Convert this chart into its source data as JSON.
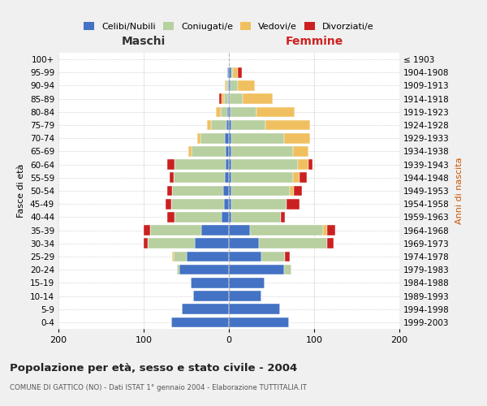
{
  "age_groups": [
    "0-4",
    "5-9",
    "10-14",
    "15-19",
    "20-24",
    "25-29",
    "30-34",
    "35-39",
    "40-44",
    "45-49",
    "50-54",
    "55-59",
    "60-64",
    "65-69",
    "70-74",
    "75-79",
    "80-84",
    "85-89",
    "90-94",
    "95-99",
    "100+"
  ],
  "birth_years": [
    "1999-2003",
    "1994-1998",
    "1989-1993",
    "1984-1988",
    "1979-1983",
    "1974-1978",
    "1969-1973",
    "1964-1968",
    "1959-1963",
    "1954-1958",
    "1949-1953",
    "1944-1948",
    "1939-1943",
    "1934-1938",
    "1929-1933",
    "1924-1928",
    "1919-1923",
    "1914-1918",
    "1909-1913",
    "1904-1908",
    "≤ 1903"
  ],
  "colors": {
    "celibi": "#4472c4",
    "coniugati": "#b8cfa0",
    "vedovi": "#f0c060",
    "divorziati": "#cc2020"
  },
  "males": {
    "celibi": [
      68,
      55,
      42,
      45,
      58,
      50,
      40,
      32,
      9,
      6,
      7,
      5,
      4,
      4,
      5,
      3,
      2,
      1,
      1,
      2,
      0
    ],
    "coniugati": [
      0,
      0,
      0,
      0,
      3,
      15,
      55,
      60,
      55,
      62,
      60,
      60,
      60,
      40,
      28,
      18,
      8,
      5,
      2,
      0,
      0
    ],
    "vedovi": [
      0,
      0,
      0,
      0,
      0,
      2,
      0,
      0,
      0,
      0,
      0,
      0,
      0,
      4,
      4,
      5,
      5,
      3,
      2,
      0,
      0
    ],
    "divorziati": [
      0,
      0,
      0,
      0,
      0,
      0,
      5,
      8,
      8,
      6,
      5,
      5,
      8,
      0,
      0,
      0,
      0,
      2,
      0,
      0,
      0
    ]
  },
  "females": {
    "nubili": [
      70,
      60,
      38,
      42,
      65,
      38,
      35,
      25,
      3,
      3,
      3,
      3,
      3,
      3,
      3,
      3,
      2,
      1,
      2,
      3,
      0
    ],
    "coniugati": [
      0,
      0,
      0,
      0,
      8,
      28,
      80,
      85,
      58,
      65,
      68,
      72,
      78,
      72,
      62,
      40,
      30,
      15,
      8,
      2,
      0
    ],
    "vedovi": [
      0,
      0,
      0,
      0,
      0,
      0,
      0,
      5,
      0,
      0,
      5,
      8,
      12,
      18,
      30,
      52,
      45,
      35,
      20,
      5,
      0
    ],
    "divorziati": [
      0,
      0,
      0,
      0,
      0,
      5,
      8,
      10,
      5,
      15,
      10,
      8,
      5,
      0,
      0,
      0,
      0,
      0,
      0,
      5,
      0
    ]
  },
  "title": "Popolazione per età, sesso e stato civile - 2004",
  "subtitle": "COMUNE DI GATTICO (NO) - Dati ISTAT 1° gennaio 2004 - Elaborazione TUTTITALIA.IT",
  "xlabel_left": "Maschi",
  "xlabel_right": "Femmine",
  "ylabel_left": "Fasce di età",
  "ylabel_right": "Anni di nascita",
  "xlim": 200,
  "bg_color": "#f0f0f0",
  "plot_bg": "#ffffff",
  "legend_labels": [
    "Celibi/Nubili",
    "Coniugati/e",
    "Vedovi/e",
    "Divorziati/e"
  ]
}
